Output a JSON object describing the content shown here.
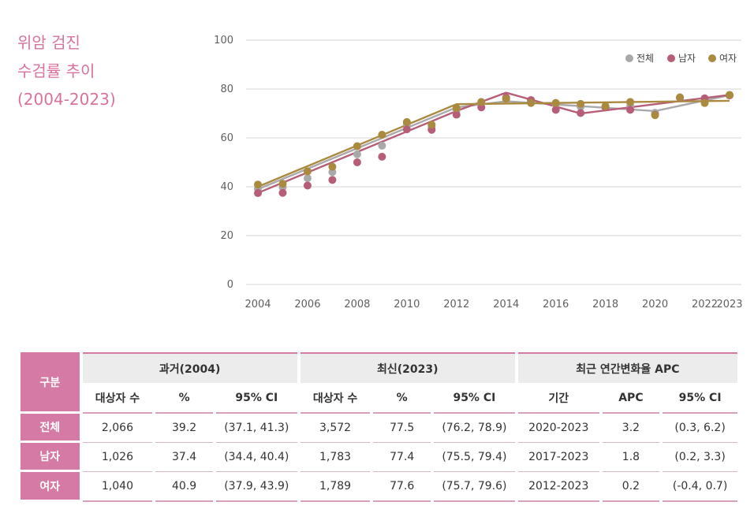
{
  "title_lines": [
    "위암 검진",
    "수검률 추이",
    "(2004-2023)"
  ],
  "chart_data": {
    "type": "line",
    "title": "위암 검진 수검률 추이 (2004-2023)",
    "x": [
      2004,
      2005,
      2006,
      2007,
      2008,
      2009,
      2010,
      2011,
      2012,
      2013,
      2014,
      2015,
      2016,
      2017,
      2018,
      2019,
      2020,
      2021,
      2022,
      2023
    ],
    "x_ticks": [
      2004,
      2006,
      2008,
      2010,
      2012,
      2014,
      2016,
      2018,
      2020,
      2022,
      2023
    ],
    "ylim": [
      0,
      100
    ],
    "y_ticks": [
      0,
      20,
      40,
      60,
      80,
      100
    ],
    "grid": "horizontal",
    "legend_position": "top-right",
    "series": [
      {
        "name": "전체",
        "color": "#a9a9ab",
        "points": [
          39.2,
          39.8,
          43.5,
          46.0,
          53.3,
          56.8,
          65.6,
          64.5,
          71.3,
          74.3,
          76.1,
          74.9,
          73.8,
          72.8,
          72.9,
          73.1,
          70.3,
          76.5,
          75.9,
          77.5
        ],
        "fit_x": [
          2004,
          2012,
          2014,
          2020,
          2023
        ],
        "fit_y": [
          39.0,
          72.5,
          75.0,
          71.0,
          77.5
        ]
      },
      {
        "name": "남자",
        "color": "#b65e78",
        "points": [
          37.4,
          37.5,
          40.5,
          42.8,
          50.0,
          52.3,
          63.5,
          63.3,
          69.5,
          72.5,
          76.5,
          75.5,
          71.5,
          70.2,
          72.5,
          71.5,
          69.5,
          76.5,
          76.2,
          77.4
        ],
        "fit_x": [
          2004,
          2012,
          2014,
          2017,
          2023
        ],
        "fit_y": [
          37.5,
          71.0,
          78.5,
          70.0,
          77.6
        ]
      },
      {
        "name": "여자",
        "color": "#a98a3e",
        "points": [
          40.9,
          41.2,
          46.3,
          48.2,
          56.6,
          61.3,
          66.5,
          65.4,
          72.2,
          74.7,
          76.0,
          74.3,
          74.3,
          73.9,
          73.0,
          74.7,
          69.3,
          76.6,
          74.3,
          77.6
        ],
        "fit_x": [
          2004,
          2012,
          2023
        ],
        "fit_y": [
          40.0,
          73.8,
          75.2
        ]
      }
    ]
  },
  "table": {
    "row_header_label": "구분",
    "groups": [
      "과거(2004)",
      "최신(2023)",
      "최근 연간변화율 APC"
    ],
    "subheaders": [
      "대상자 수",
      "%",
      "95% CI",
      "대상자 수",
      "%",
      "95% CI",
      "기간",
      "APC",
      "95% CI"
    ],
    "rows": [
      {
        "label": "전체",
        "cells": [
          "2,066",
          "39.2",
          "(37.1, 41.3)",
          "3,572",
          "77.5",
          "(76.2, 78.9)",
          "2020-2023",
          "3.2",
          "(0.3, 6.2)"
        ]
      },
      {
        "label": "남자",
        "cells": [
          "1,026",
          "37.4",
          "(34.4, 40.4)",
          "1,783",
          "77.4",
          "(75.5, 79.4)",
          "2017-2023",
          "1.8",
          "(0.2, 3.3)"
        ]
      },
      {
        "label": "여자",
        "cells": [
          "1,040",
          "40.9",
          "(37.9, 43.9)",
          "1,789",
          "77.6",
          "(75.7, 79.6)",
          "2012-2023",
          "0.2",
          "(-0.4, 0.7)"
        ]
      }
    ]
  }
}
